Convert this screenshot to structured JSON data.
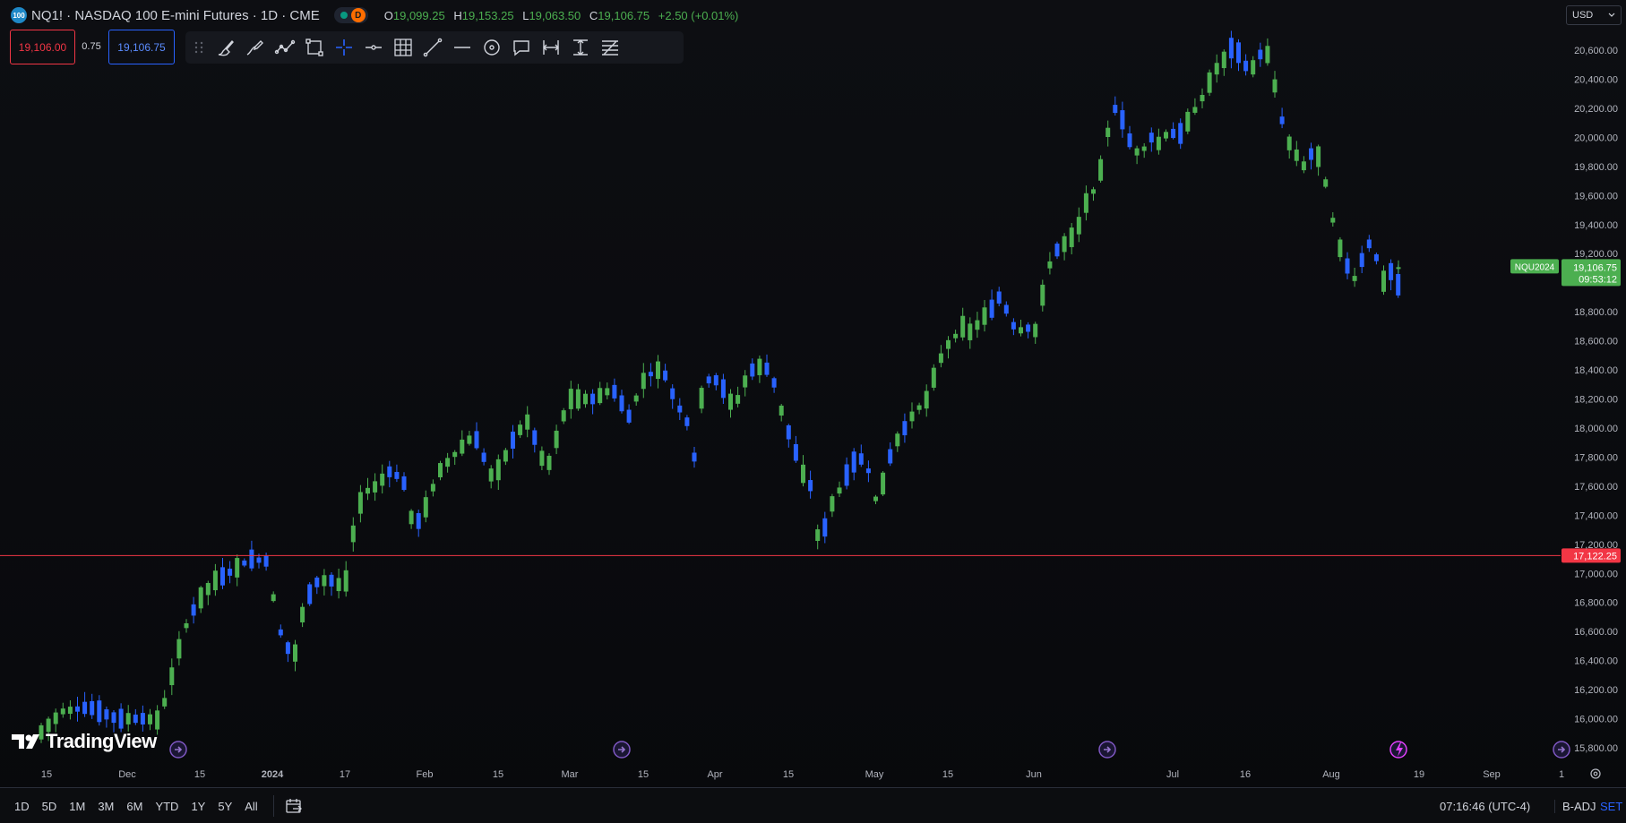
{
  "header": {
    "symbol_badge": "100",
    "title": "NQ1! · NASDAQ 100 E-mini Futures · 1D · CME",
    "status_dot_color": "#089981",
    "session_badge": "D",
    "ohlc": {
      "o_label": "O",
      "o_value": "19,099.25",
      "h_label": "H",
      "h_value": "19,153.25",
      "l_label": "L",
      "l_value": "19,063.50",
      "c_label": "C",
      "c_value": "19,106.75",
      "change": "+2.50 (+0.01%)"
    }
  },
  "trade": {
    "sell_price": "19,106.00",
    "spread": "0.75",
    "buy_price": "19,106.75"
  },
  "drawing_toolbar": {
    "tools": [
      "grip-icon",
      "brush-icon",
      "pen-curve-icon",
      "polyline-icon",
      "rectangle-icon",
      "crosshair-icon",
      "horizontal-ray-icon",
      "grid-icon",
      "trend-line-icon",
      "horizontal-line-icon",
      "circle-icon",
      "callout-icon",
      "date-range-icon",
      "price-range-icon",
      "fib-retracement-icon"
    ]
  },
  "currency": {
    "label": "USD"
  },
  "chart_data": {
    "type": "candlestick",
    "symbol": "NQ1!",
    "y_ticks": [
      "20,600.00",
      "20,400.00",
      "20,200.00",
      "20,000.00",
      "19,800.00",
      "19,600.00",
      "19,400.00",
      "19,200.00",
      "18,800.00",
      "18,600.00",
      "18,400.00",
      "18,200.00",
      "18,000.00",
      "17,800.00",
      "17,600.00",
      "17,400.00",
      "17,200.00",
      "17,000.00",
      "16,800.00",
      "16,600.00",
      "16,400.00",
      "16,200.00",
      "16,000.00",
      "15,800.00"
    ],
    "x_ticks": [
      "15",
      "Dec",
      "15",
      "2024",
      "17",
      "Feb",
      "15",
      "Mar",
      "15",
      "Apr",
      "15",
      "May",
      "15",
      "Jun",
      "Jul",
      "16",
      "Aug",
      "19",
      "Sep",
      "1"
    ],
    "bold_x_ticks": [
      "2024"
    ],
    "horizontal_line": {
      "price": 17122.25,
      "label": "17,122.25",
      "color": "#f23645"
    },
    "last_price": {
      "label": "19,106.75",
      "countdown": "09:53:12",
      "contract": "NQU2024",
      "color": "#4caf50"
    },
    "up_color": "#4caf50",
    "down_color": "#2962ff",
    "grid": false,
    "event_markers": [
      "dividend-icon",
      "dividend-icon",
      "dividend-icon",
      "lightning-icon",
      "dividend-icon"
    ]
  },
  "bottom": {
    "timeframes": [
      "1D",
      "5D",
      "1M",
      "3M",
      "6M",
      "YTD",
      "1Y",
      "5Y",
      "All"
    ],
    "clock": "07:16:46 (UTC-4)",
    "badj": "B-ADJ",
    "set": "SET"
  },
  "logo": {
    "text": "TradingView"
  }
}
